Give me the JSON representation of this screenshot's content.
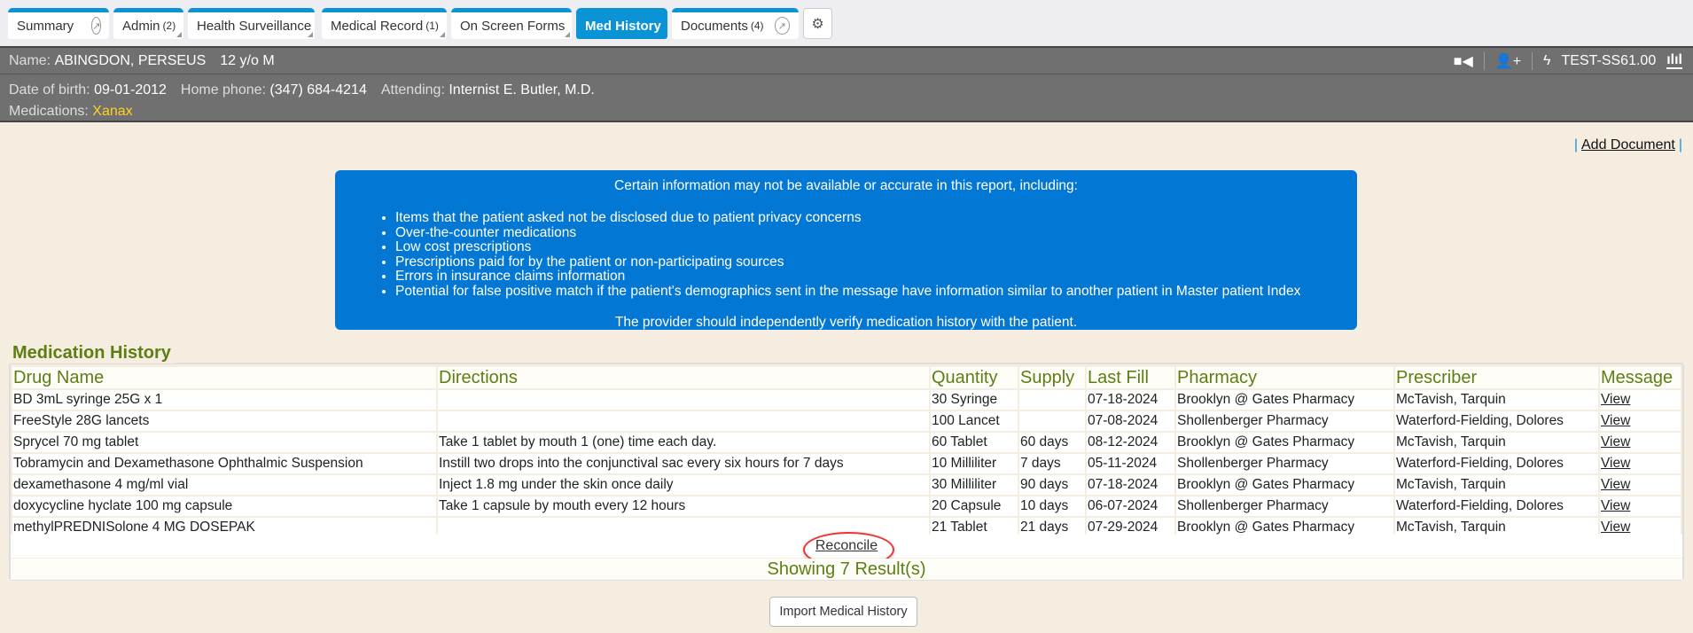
{
  "tabs": [
    {
      "label": "Summary",
      "count": ""
    },
    {
      "label": "Admin",
      "count": "(2)"
    },
    {
      "label": "Health Surveillance",
      "count": ""
    },
    {
      "label": "Medical Record",
      "count": "(1)"
    },
    {
      "label": "On Screen Forms",
      "count": ""
    },
    {
      "label": "Med History",
      "count": ""
    },
    {
      "label": "Documents",
      "count": "(4)"
    }
  ],
  "patient": {
    "name_label": "Name:",
    "name": "ABINGDON, PERSEUS",
    "age_sex": "12 y/o M",
    "dob_label": "Date of birth:",
    "dob": "09-01-2012",
    "phone_label": "Home phone:",
    "phone": "(347) 684-4214",
    "attending_label": "Attending:",
    "attending": "Internist E. Butler, M.D.",
    "meds_label": "Medications:",
    "meds": "Xanax",
    "site": "TEST-SS61.00"
  },
  "add_document": "Add Document",
  "notice": {
    "intro": "Certain information may not be available or accurate in this report, including:",
    "items": [
      "Items that the patient asked not be disclosed due to patient privacy concerns",
      "Over-the-counter medications",
      "Low cost prescriptions",
      "Prescriptions paid for by the patient or non-participating sources",
      "Errors in insurance claims information",
      "Potential for false positive match if the patient's demographics sent in the message have information similar to another patient in Master patient Index"
    ],
    "footer": "The provider should independently verify medication history with the patient."
  },
  "med_history": {
    "title": "Medication History",
    "columns": [
      "Drug Name",
      "Directions",
      "Quantity",
      "Supply",
      "Last Fill",
      "Pharmacy",
      "Prescriber",
      "Message"
    ],
    "rows": [
      [
        "BD 3mL syringe 25G x 1",
        "",
        "30 Syringe",
        "",
        "07-18-2024",
        "Brooklyn @ Gates Pharmacy",
        "McTavish, Tarquin",
        "View"
      ],
      [
        "FreeStyle 28G lancets",
        "",
        "100 Lancet",
        "",
        "07-08-2024",
        "Shollenberger Pharmacy",
        "Waterford-Fielding, Dolores",
        "View"
      ],
      [
        "Sprycel 70 mg tablet",
        "Take 1 tablet by mouth 1 (one) time each day.",
        "60 Tablet",
        "60 days",
        "08-12-2024",
        "Brooklyn @ Gates Pharmacy",
        "McTavish, Tarquin",
        "View"
      ],
      [
        "Tobramycin and Dexamethasone Ophthalmic Suspension",
        "Instill two drops into the conjunctival sac every six hours for 7 days",
        "10 Milliliter",
        "7 days",
        "05-11-2024",
        "Shollenberger Pharmacy",
        "Waterford-Fielding, Dolores",
        "View"
      ],
      [
        "dexamethasone 4 mg/ml vial",
        "Inject 1.8 mg under the skin once daily",
        "30 Milliliter",
        "90 days",
        "07-18-2024",
        "Brooklyn @ Gates Pharmacy",
        "McTavish, Tarquin",
        "View"
      ],
      [
        "doxycycline hyclate 100 mg capsule",
        "Take 1 capsule by mouth every 12 hours",
        "20 Capsule",
        "10 days",
        "06-07-2024",
        "Shollenberger Pharmacy",
        "Waterford-Fielding, Dolores",
        "View"
      ],
      [
        "methylPREDNISolone 4 MG DOSEPAK",
        "",
        "21 Tablet",
        "21 days",
        "07-29-2024",
        "Brooklyn @ Gates Pharmacy",
        "McTavish, Tarquin",
        "View"
      ]
    ],
    "reconcile": "Reconcile",
    "showing": "Showing 7 Result(s)"
  },
  "import_button": "Import Medical History"
}
